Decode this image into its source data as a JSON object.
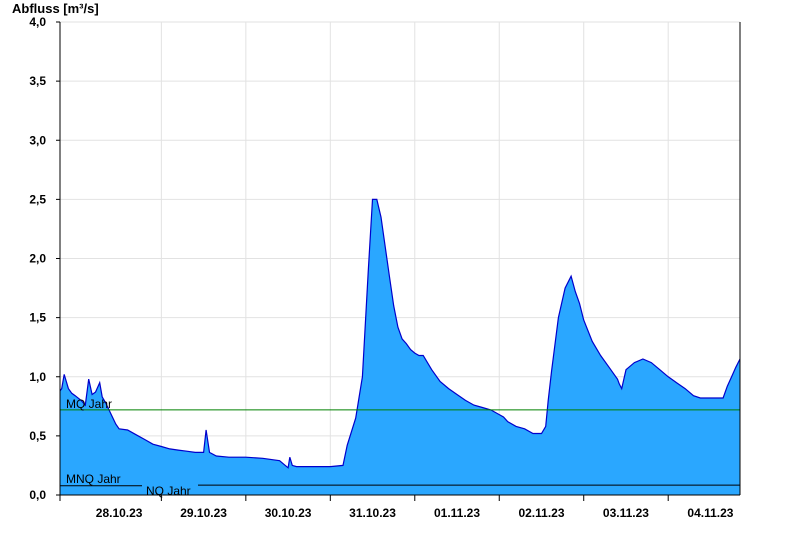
{
  "chart_data": {
    "type": "area",
    "ylabel": "Abfluss [m³/s]",
    "ylim": [
      0,
      4.0
    ],
    "y_ticks": [
      "0,0",
      "0,5",
      "1,0",
      "1,5",
      "2,0",
      "2,5",
      "3,0",
      "3,5",
      "4,0"
    ],
    "x_ticks": [
      "28.10.23",
      "29.10.23",
      "30.10.23",
      "31.10.23",
      "01.11.23",
      "02.11.23",
      "03.11.23",
      "04.11.23"
    ],
    "x_days_range": [
      -0.2,
      7.85
    ],
    "grid": true,
    "fill_color": "#2aa7ff",
    "line_color": "#0000cc",
    "series": [
      {
        "x": [
          -0.2,
          -0.18,
          -0.15,
          -0.1,
          -0.06,
          -0.02,
          0.05,
          0.1,
          0.14,
          0.18,
          0.22,
          0.27,
          0.3,
          0.34,
          0.38,
          0.42,
          0.46,
          0.5,
          0.6,
          0.7,
          0.8,
          0.9,
          1.0,
          1.1,
          1.2,
          1.3,
          1.4,
          1.5,
          1.53,
          1.57,
          1.65,
          1.8,
          2.0,
          2.2,
          2.4,
          2.45,
          2.5,
          2.52,
          2.55,
          2.6,
          2.8,
          3.0,
          3.15,
          3.2,
          3.3,
          3.38,
          3.45,
          3.5,
          3.55,
          3.6,
          3.65,
          3.7,
          3.75,
          3.8,
          3.85,
          3.9,
          3.95,
          4.0,
          4.05,
          4.1,
          4.2,
          4.3,
          4.4,
          4.5,
          4.6,
          4.7,
          4.8,
          4.9,
          5.0,
          5.05,
          5.1,
          5.2,
          5.3,
          5.4,
          5.5,
          5.55,
          5.58,
          5.62,
          5.7,
          5.78,
          5.85,
          5.9,
          5.95,
          6.0,
          6.1,
          6.2,
          6.3,
          6.4,
          6.42,
          6.45,
          6.5,
          6.6,
          6.7,
          6.8,
          6.9,
          7.0,
          7.1,
          7.2,
          7.3,
          7.38,
          7.45,
          7.55,
          7.65,
          7.7,
          7.75,
          7.8,
          7.85
        ],
        "values": [
          0.88,
          0.9,
          1.02,
          0.9,
          0.86,
          0.84,
          0.8,
          0.76,
          0.98,
          0.85,
          0.87,
          0.95,
          0.83,
          0.78,
          0.72,
          0.66,
          0.6,
          0.56,
          0.55,
          0.51,
          0.47,
          0.43,
          0.41,
          0.39,
          0.38,
          0.37,
          0.36,
          0.36,
          0.55,
          0.36,
          0.33,
          0.32,
          0.32,
          0.31,
          0.29,
          0.26,
          0.23,
          0.32,
          0.25,
          0.24,
          0.24,
          0.24,
          0.25,
          0.42,
          0.65,
          1.0,
          1.9,
          2.5,
          2.5,
          2.35,
          2.1,
          1.85,
          1.6,
          1.42,
          1.32,
          1.28,
          1.23,
          1.2,
          1.18,
          1.18,
          1.06,
          0.96,
          0.9,
          0.85,
          0.8,
          0.76,
          0.74,
          0.72,
          0.68,
          0.66,
          0.62,
          0.58,
          0.56,
          0.52,
          0.52,
          0.58,
          0.8,
          1.05,
          1.5,
          1.75,
          1.85,
          1.72,
          1.62,
          1.48,
          1.3,
          1.18,
          1.08,
          0.98,
          0.94,
          0.9,
          1.06,
          1.12,
          1.15,
          1.12,
          1.06,
          1.0,
          0.95,
          0.9,
          0.84,
          0.82,
          0.82,
          0.82,
          0.82,
          0.92,
          1.0,
          1.08,
          1.15
        ]
      }
    ],
    "reference_lines": [
      {
        "label": "MQ Jahr",
        "value": 0.72,
        "color": "#008000"
      },
      {
        "label": "MNQ Jahr",
        "value": 0.095,
        "color": "#000000"
      },
      {
        "label": "NQ Jahr",
        "value": 0.092,
        "color": "#000000"
      }
    ]
  }
}
